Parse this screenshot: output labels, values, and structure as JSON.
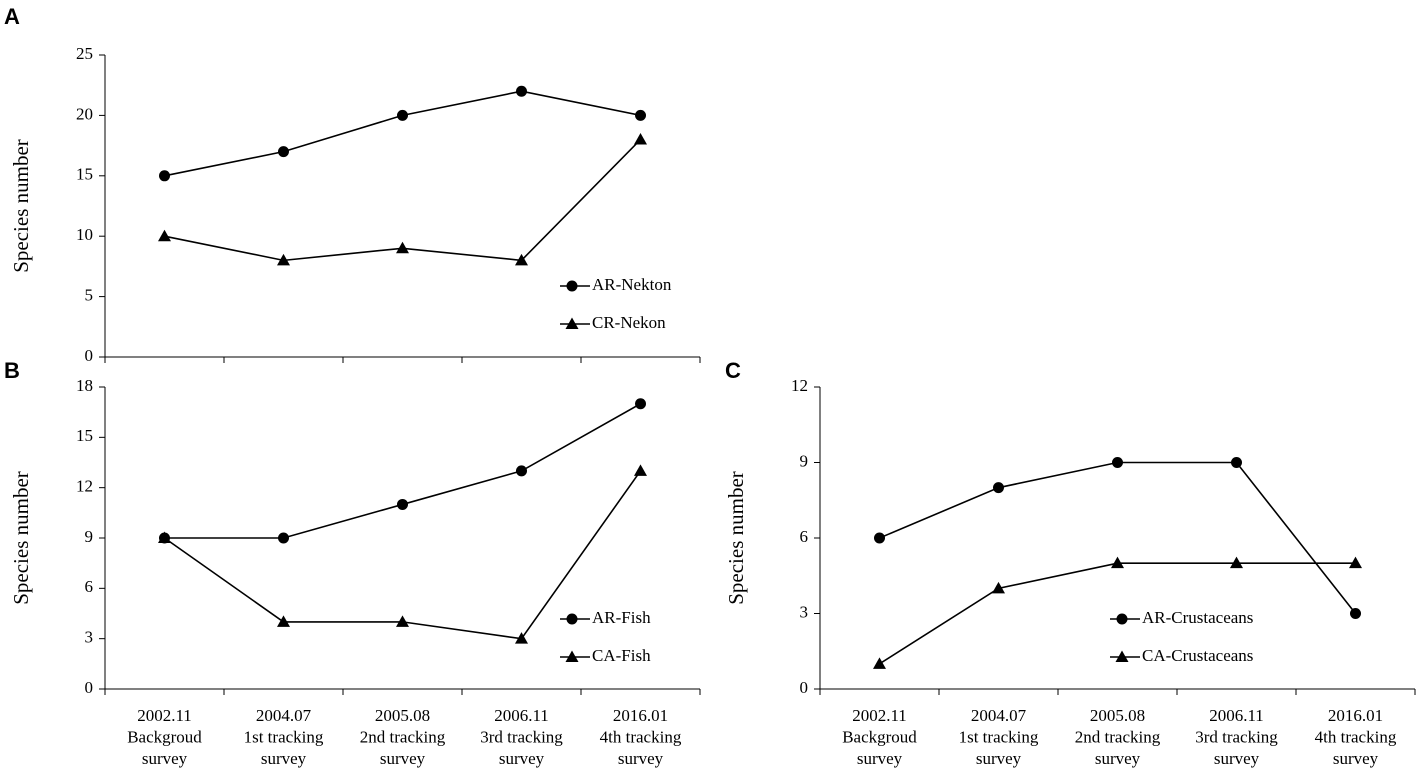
{
  "chart_data": [
    {
      "type": "line",
      "panel": "A",
      "ylabel": "Species number",
      "categories": [
        null,
        null,
        null,
        null,
        null
      ],
      "ylim": [
        0,
        25
      ],
      "yticks": [
        0,
        5,
        10,
        15,
        20,
        25
      ],
      "series": [
        {
          "name": "AR-Nekton",
          "color": "#000000",
          "marker": "circle",
          "values": [
            15,
            17,
            20,
            22,
            20
          ]
        },
        {
          "name": "CR-Nekon",
          "color": "#000000",
          "marker": "triangle",
          "values": [
            10,
            8,
            9,
            8,
            18
          ]
        }
      ]
    },
    {
      "type": "line",
      "panel": "B",
      "ylabel": "Species number",
      "categories": [
        [
          "2002.11",
          "Backgroud",
          "survey"
        ],
        [
          "2004.07",
          "1st tracking",
          "survey"
        ],
        [
          "2005.08",
          "2nd tracking",
          "survey"
        ],
        [
          "2006.11",
          "3rd tracking",
          "survey"
        ],
        [
          "2016.01",
          "4th tracking",
          "survey"
        ]
      ],
      "ylim": [
        0,
        18
      ],
      "yticks": [
        0,
        3,
        6,
        9,
        12,
        15,
        18
      ],
      "series": [
        {
          "name": "AR-Fish",
          "color": "#000000",
          "marker": "circle",
          "values": [
            9,
            9,
            11,
            13,
            17
          ]
        },
        {
          "name": "CA-Fish",
          "color": "#000000",
          "marker": "triangle",
          "values": [
            9,
            4,
            4,
            3,
            13
          ]
        }
      ]
    },
    {
      "type": "line",
      "panel": "C",
      "ylabel": "Species number",
      "categories": [
        [
          "2002.11",
          "Backgroud",
          "survey"
        ],
        [
          "2004.07",
          "1st tracking",
          "survey"
        ],
        [
          "2005.08",
          "2nd tracking",
          "survey"
        ],
        [
          "2006.11",
          "3rd tracking",
          "survey"
        ],
        [
          "2016.01",
          "4th tracking",
          "survey"
        ]
      ],
      "ylim": [
        0,
        12
      ],
      "yticks": [
        0,
        3,
        6,
        9,
        12
      ],
      "series": [
        {
          "name": "AR-Crustaceans",
          "color": "#000000",
          "marker": "circle",
          "values": [
            6,
            8,
            9,
            9,
            3
          ]
        },
        {
          "name": "CA-Crustaceans",
          "color": "#000000",
          "marker": "triangle",
          "values": [
            1,
            4,
            5,
            5,
            5
          ]
        }
      ]
    }
  ]
}
